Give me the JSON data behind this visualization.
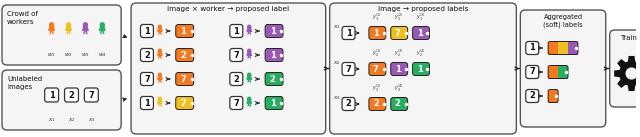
{
  "bg_color": "#ffffff",
  "orange": "#F47920",
  "yellow": "#F0C020",
  "purple": "#9B59B6",
  "green": "#27AE60",
  "worker_colors": [
    "#F47920",
    "#F0C020",
    "#9B59B6",
    "#27AE60"
  ],
  "panel3_rows": [
    [
      [
        "1",
        "orange",
        "1",
        "orange"
      ],
      [
        "1",
        "purple",
        "1",
        "purple"
      ]
    ],
    [
      [
        "2",
        "orange",
        "2",
        "orange"
      ],
      [
        "7",
        "purple",
        "1",
        "purple"
      ]
    ],
    [
      [
        "7",
        "orange",
        "7",
        "orange"
      ],
      [
        "2",
        "green",
        "2",
        "green"
      ]
    ],
    [
      [
        "1",
        "yellow",
        "7",
        "yellow"
      ],
      [
        "7",
        "green",
        "1",
        "green"
      ]
    ]
  ],
  "panel4_rows": [
    {
      "img": "1",
      "labels": [
        [
          "1",
          "orange"
        ],
        [
          "7",
          "yellow"
        ],
        [
          "1",
          "purple"
        ]
      ],
      "sups": [
        "(1)",
        "(2)",
        "(3)"
      ],
      "subs": [
        "1",
        "1",
        "1"
      ]
    },
    {
      "img": "7",
      "labels": [
        [
          "7",
          "orange"
        ],
        [
          "1",
          "purple"
        ],
        [
          "1",
          "green"
        ]
      ],
      "sups": [
        "(1)",
        "(3)",
        "(4)"
      ],
      "subs": [
        "2",
        "2",
        "2"
      ]
    },
    {
      "img": "2",
      "labels": [
        [
          "2",
          "orange"
        ],
        [
          "2",
          "green"
        ]
      ],
      "sups": [
        "(1)",
        "(4)"
      ],
      "subs": [
        "3",
        "3"
      ]
    }
  ],
  "panel5_rows": [
    {
      "img": "1",
      "segs": [
        "orange",
        "yellow",
        "purple"
      ]
    },
    {
      "img": "7",
      "segs": [
        "orange",
        "green"
      ]
    },
    {
      "img": "2",
      "segs": [
        "orange"
      ]
    }
  ]
}
